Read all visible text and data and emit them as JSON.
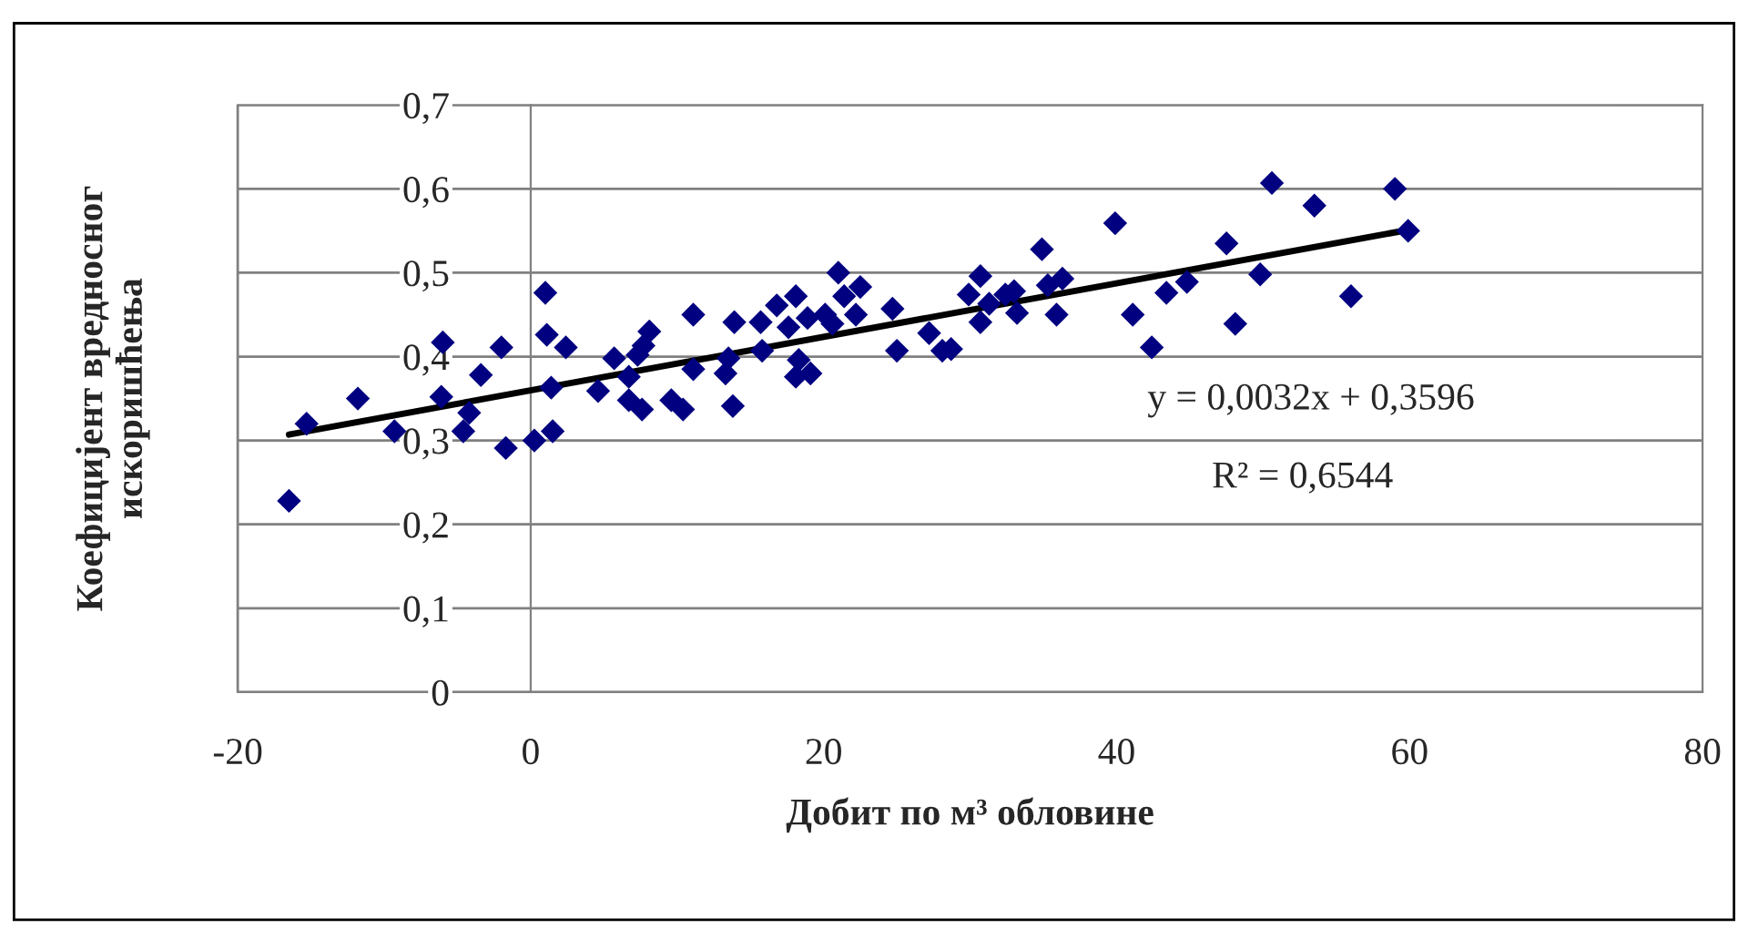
{
  "chart_data": {
    "type": "scatter",
    "xlabel": "Добит по м³ обловине",
    "ylabel": "Коефицијент вредносног\nискоришћења",
    "xlim": [
      -20,
      80
    ],
    "xticks": [
      -20,
      0,
      20,
      40,
      60,
      80
    ],
    "ylim": [
      0,
      0.7
    ],
    "yticks": [
      {
        "value": 0,
        "label": "0"
      },
      {
        "value": 0.1,
        "label": "0,1"
      },
      {
        "value": 0.2,
        "label": "0,2"
      },
      {
        "value": 0.3,
        "label": "0,3"
      },
      {
        "value": 0.4,
        "label": "0,4"
      },
      {
        "value": 0.5,
        "label": "0,5"
      },
      {
        "value": 0.6,
        "label": "0,6"
      },
      {
        "value": 0.7,
        "label": "0,7"
      }
    ],
    "grid": "y",
    "annotations": [
      "y = 0,0032x + 0,3596",
      "R² = 0,6544"
    ],
    "series": [
      {
        "marker": "diamond",
        "color": "#000080",
        "x": [
          -16.5,
          -15.3,
          -11.8,
          -9.3,
          -6.0,
          -2.0,
          1.1,
          2.4,
          -3.4,
          -6.1,
          -4.2,
          -4.6,
          -1.7,
          0.25,
          1.5,
          1.4,
          1.0,
          4.6,
          5.7,
          6.7,
          7.3,
          8.1,
          7.7,
          6.7,
          7.6,
          9.6,
          10.4,
          11.1,
          11.1,
          13.8,
          13.3,
          13.5,
          13.9,
          15.7,
          15.8,
          16.8,
          18.1,
          17.6,
          18.3,
          18.1,
          19.1,
          18.9,
          20.1,
          21.0,
          21.4,
          22.5,
          22.2,
          20.6,
          24.7,
          25.0,
          27.2,
          28.1,
          28.7,
          29.9,
          30.7,
          30.7,
          31.3,
          32.4,
          33.2,
          33.0,
          34.9,
          35.3,
          36.3,
          35.9,
          39.9,
          41.1,
          42.4,
          43.4,
          44.8,
          47.5,
          48.1,
          49.8,
          50.6,
          53.5,
          56.0,
          59.0,
          59.9
        ],
        "values": [
          0.228,
          0.32,
          0.35,
          0.311,
          0.417,
          0.411,
          0.426,
          0.411,
          0.378,
          0.352,
          0.333,
          0.311,
          0.291,
          0.3,
          0.311,
          0.363,
          0.476,
          0.359,
          0.398,
          0.376,
          0.402,
          0.43,
          0.413,
          0.348,
          0.337,
          0.348,
          0.337,
          0.45,
          0.385,
          0.341,
          0.38,
          0.398,
          0.441,
          0.441,
          0.407,
          0.461,
          0.472,
          0.435,
          0.396,
          0.376,
          0.38,
          0.446,
          0.45,
          0.5,
          0.472,
          0.483,
          0.45,
          0.439,
          0.457,
          0.407,
          0.428,
          0.407,
          0.409,
          0.474,
          0.496,
          0.441,
          0.463,
          0.474,
          0.452,
          0.478,
          0.528,
          0.485,
          0.493,
          0.45,
          0.559,
          0.45,
          0.411,
          0.476,
          0.489,
          0.535,
          0.439,
          0.498,
          0.607,
          0.58,
          0.472,
          0.6,
          0.55
        ]
      },
      {
        "type": "line",
        "marker": "none",
        "color": "#000000",
        "x": [
          -16.5,
          59.9
        ],
        "values": [
          0.307,
          0.551
        ]
      }
    ]
  }
}
